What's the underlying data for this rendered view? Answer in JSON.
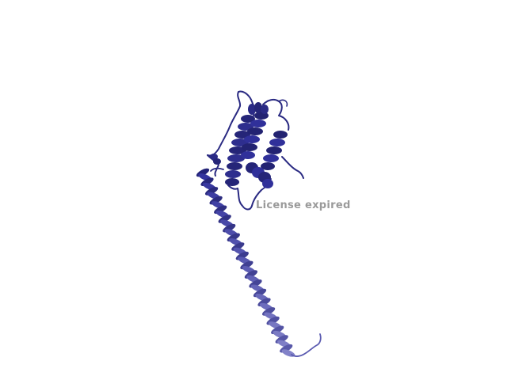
{
  "viewer": {
    "background_color": "#ffffff",
    "watermark": "License expired",
    "watermark_color": "#9a9a9a"
  },
  "structure": {
    "representation": "cartoon",
    "color_dark": "#232377",
    "color_mid": "#30309a",
    "color_light": "#6a6ab8",
    "helix_light": "#8a8ad0"
  }
}
